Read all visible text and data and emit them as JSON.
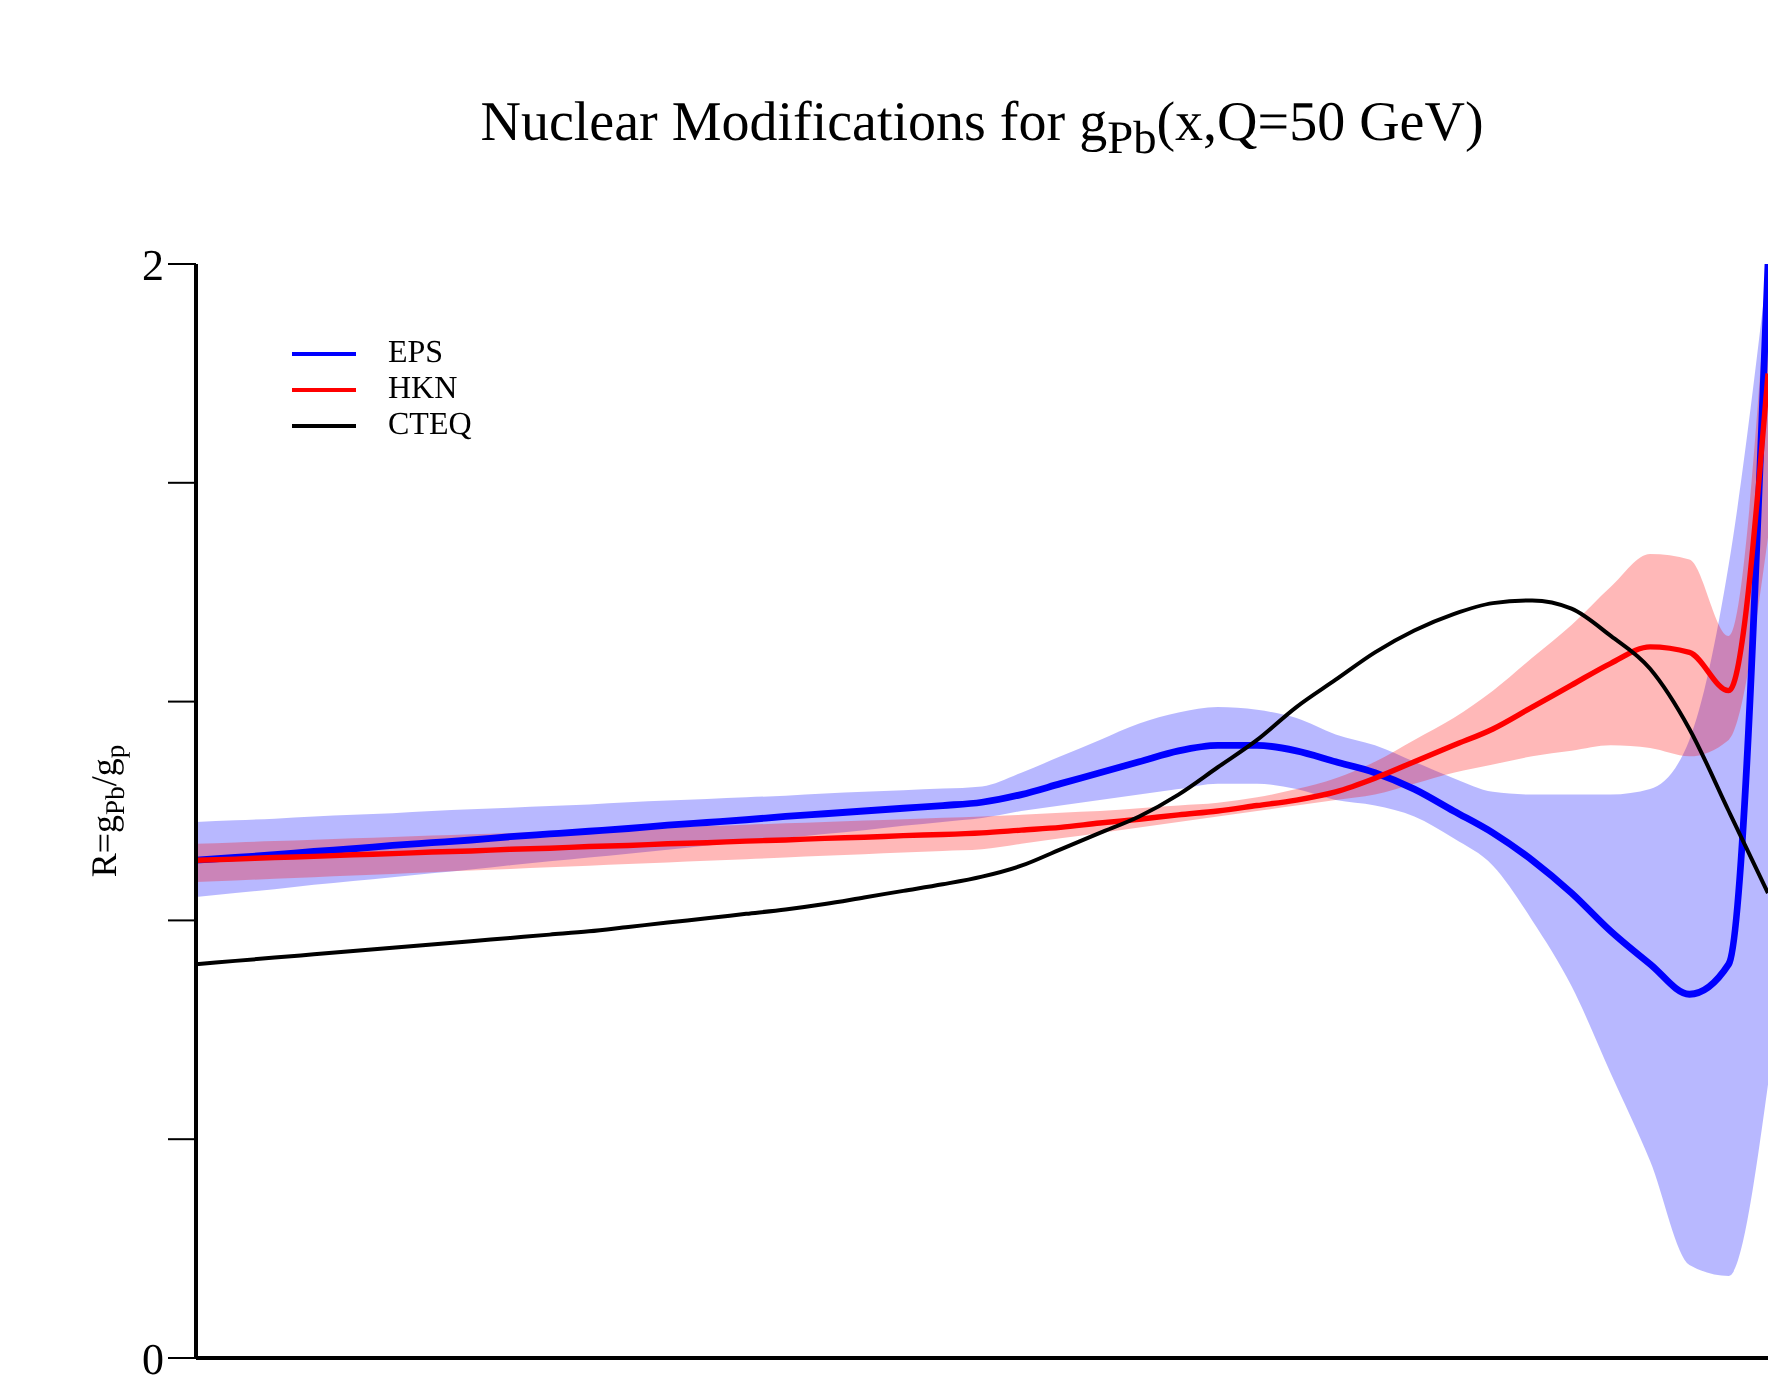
{
  "chart_data": {
    "type": "line",
    "title": "Nuclear Modifications for g$_{Pb}$(x,Q=50 GeV)",
    "ylabel": "R=g$_{Pb}$/g$_{p}$",
    "categories": [
      null,
      null,
      null,
      null,
      null,
      null,
      null,
      null,
      null,
      null,
      null,
      null,
      null,
      null,
      null,
      null,
      null,
      null,
      null,
      null,
      null,
      null,
      null,
      null,
      null,
      null,
      null,
      null,
      null,
      null,
      null,
      null,
      null,
      null,
      null,
      null,
      null,
      null,
      null,
      null,
      null
    ],
    "ylim": [
      0,
      2
    ],
    "yticks": [
      0,
      {
        "value": 0.4,
        "label": null
      },
      {
        "value": 0.8,
        "label": null
      },
      {
        "value": 1.2,
        "label": null
      },
      {
        "value": 1.6,
        "label": null
      },
      2
    ],
    "grid": false,
    "legend": "top left",
    "marker": "none",
    "line_style": "solid",
    "tick_labels": "y",
    "series": [
      {
        "name": "EPS",
        "color": "#0000ff",
        "values": [
          0.91,
          0.915,
          0.92,
          0.926,
          0.931,
          0.937,
          0.942,
          0.947,
          0.953,
          0.958,
          0.963,
          0.968,
          0.974,
          0.979,
          0.984,
          0.99,
          0.995,
          1.0,
          1.005,
          1.01,
          1.016,
          1.03,
          1.05,
          1.07,
          1.09,
          1.11,
          1.12,
          1.12,
          1.11,
          1.09,
          1.07,
          1.04,
          1.0,
          0.96,
          0.91,
          0.85,
          0.78,
          0.72,
          0.665,
          0.72,
          2.0
        ],
        "lower": [
          0.843,
          0.85,
          0.857,
          0.865,
          0.872,
          0.879,
          0.886,
          0.893,
          0.901,
          0.908,
          0.915,
          0.922,
          0.929,
          0.937,
          0.944,
          0.951,
          0.958,
          0.965,
          0.973,
          0.98,
          0.987,
          1.0,
          1.01,
          1.02,
          1.03,
          1.04,
          1.05,
          1.05,
          1.04,
          1.02,
          1.01,
          0.99,
          0.95,
          0.9,
          0.8,
          0.68,
          0.52,
          0.36,
          0.17,
          0.15,
          0.5
        ],
        "upper": [
          0.98,
          0.983,
          0.986,
          0.99,
          0.993,
          0.996,
          1.0,
          1.003,
          1.006,
          1.009,
          1.012,
          1.016,
          1.019,
          1.022,
          1.025,
          1.028,
          1.032,
          1.035,
          1.038,
          1.041,
          1.045,
          1.07,
          1.1,
          1.13,
          1.16,
          1.18,
          1.19,
          1.185,
          1.17,
          1.14,
          1.12,
          1.09,
          1.06,
          1.035,
          1.03,
          1.03,
          1.03,
          1.04,
          1.13,
          1.45,
          2.0
        ]
      },
      {
        "name": "HKN",
        "color": "#ff0000",
        "values": [
          0.91,
          0.912,
          0.915,
          0.917,
          0.92,
          0.922,
          0.925,
          0.927,
          0.93,
          0.932,
          0.935,
          0.937,
          0.94,
          0.942,
          0.945,
          0.947,
          0.95,
          0.952,
          0.955,
          0.957,
          0.96,
          0.965,
          0.97,
          0.978,
          0.985,
          0.993,
          1.0,
          1.01,
          1.02,
          1.035,
          1.06,
          1.09,
          1.12,
          1.15,
          1.19,
          1.23,
          1.27,
          1.3,
          1.29,
          1.22,
          1.8
        ],
        "lower": [
          0.87,
          0.873,
          0.876,
          0.879,
          0.882,
          0.885,
          0.888,
          0.891,
          0.894,
          0.897,
          0.9,
          0.903,
          0.906,
          0.909,
          0.912,
          0.915,
          0.918,
          0.921,
          0.924,
          0.927,
          0.93,
          0.94,
          0.95,
          0.96,
          0.97,
          0.98,
          0.99,
          1.0,
          1.01,
          1.02,
          1.03,
          1.05,
          1.07,
          1.085,
          1.1,
          1.11,
          1.12,
          1.115,
          1.1,
          1.13,
          1.5
        ],
        "upper": [
          0.94,
          0.9425,
          0.945,
          0.9475,
          0.95,
          0.9525,
          0.955,
          0.9575,
          0.96,
          0.9625,
          0.965,
          0.9675,
          0.97,
          0.9725,
          0.975,
          0.9775,
          0.98,
          0.9825,
          0.985,
          0.9875,
          0.99,
          0.993,
          0.997,
          1.0,
          1.005,
          1.01,
          1.015,
          1.025,
          1.04,
          1.06,
          1.09,
          1.13,
          1.17,
          1.22,
          1.28,
          1.34,
          1.41,
          1.47,
          1.46,
          1.32,
          2.0
        ]
      },
      {
        "name": "CTEQ",
        "color": "#000000",
        "values": [
          0.72,
          0.726,
          0.732,
          0.738,
          0.744,
          0.75,
          0.756,
          0.762,
          0.768,
          0.774,
          0.78,
          0.788,
          0.796,
          0.804,
          0.812,
          0.82,
          0.83,
          0.842,
          0.854,
          0.866,
          0.88,
          0.9,
          0.93,
          0.96,
          0.99,
          1.03,
          1.08,
          1.13,
          1.19,
          1.24,
          1.29,
          1.33,
          1.36,
          1.38,
          1.385,
          1.37,
          1.32,
          1.26,
          1.15,
          1.0,
          0.85
        ]
      }
    ]
  }
}
